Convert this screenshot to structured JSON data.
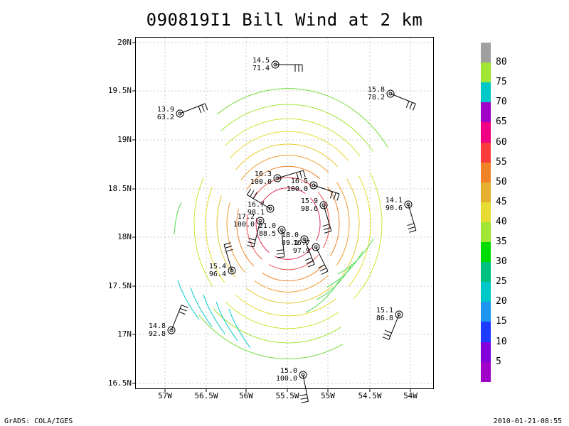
{
  "title": "090819I1 Bill Wind at 2 km",
  "lat_ticks": [
    "20N",
    "19.5N",
    "19N",
    "18.5N",
    "18N",
    "17.5N",
    "17N",
    "16.5N"
  ],
  "lon_ticks": [
    "57W",
    "56.5W",
    "56W",
    "55.5W",
    "55W",
    "54.5W",
    "54W"
  ],
  "colorbar": {
    "labels": [
      "80",
      "75",
      "70",
      "65",
      "60",
      "55",
      "50",
      "45",
      "40",
      "35",
      "30",
      "25",
      "20",
      "15",
      "10",
      "5"
    ],
    "colors": [
      "#a0a0a0",
      "#a0e632",
      "#00c8c8",
      "#a000c8",
      "#f00082",
      "#fa3c3c",
      "#f08228",
      "#e6af2d",
      "#e6dc32",
      "#a0e632",
      "#00dc00",
      "#00c080",
      "#00c8c8",
      "#1e96f0",
      "#1e3cff",
      "#8200dc",
      "#a000c8"
    ]
  },
  "observations": [
    {
      "speed": "14.5",
      "pct": "71.4"
    },
    {
      "speed": "15.8",
      "pct": "78.2"
    },
    {
      "speed": "13.9",
      "pct": "63.2"
    },
    {
      "speed": "16.3",
      "pct": "100.0"
    },
    {
      "speed": "16.5",
      "pct": "100.0"
    },
    {
      "speed": "14.1",
      "pct": "90.6"
    },
    {
      "speed": "15.9",
      "pct": "98.6"
    },
    {
      "speed": "16.7",
      "pct": "98.1"
    },
    {
      "speed": "17.2",
      "pct": "100.0"
    },
    {
      "speed": "21.0",
      "pct": "88.5"
    },
    {
      "speed": "18.0",
      "pct": "89.1"
    },
    {
      "speed": "16.7",
      "pct": "97.9"
    },
    {
      "speed": "15.4",
      "pct": "96.4"
    },
    {
      "speed": "15.1",
      "pct": "86.8"
    },
    {
      "speed": "14.8",
      "pct": "92.8"
    },
    {
      "speed": "15.0",
      "pct": "100.0"
    }
  ],
  "footer": {
    "left": "GrADS: COLA/IGES",
    "right": "2010-01-21-08:55"
  }
}
